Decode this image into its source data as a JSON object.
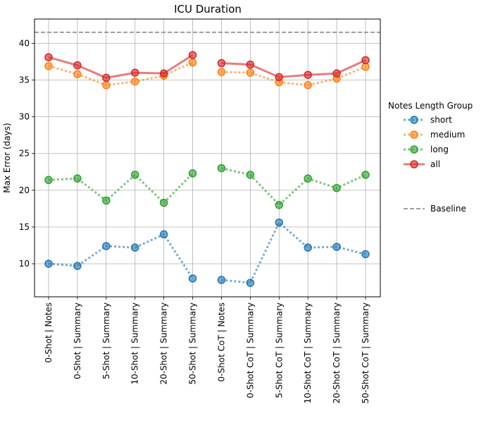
{
  "chart_data": {
    "type": "line",
    "title": "ICU Duration",
    "xlabel": "",
    "ylabel": "Max Error (days)",
    "ylim": [
      5.5,
      43.3
    ],
    "yticks": [
      10,
      15,
      20,
      25,
      30,
      35,
      40
    ],
    "grid": true,
    "categories": [
      "0-Shot | Notes",
      "0-Shot | Summary",
      "5-Shot | Summary",
      "10-Shot | Summary",
      "20-Shot | Summary",
      "50-Shot | Summary",
      "0-Shot CoT | Notes",
      "0-Shot CoT | Summary",
      "5-Shot CoT | Summary",
      "10-Shot CoT | Summary",
      "20-Shot CoT | Summary",
      "50-Shot CoT | Summary"
    ],
    "segments": [
      [
        0,
        5
      ],
      [
        6,
        11
      ]
    ],
    "series": [
      {
        "name": "short",
        "color": "#1f77b4",
        "style": "dotted",
        "values": [
          10.0,
          9.7,
          12.4,
          12.2,
          14.0,
          8.0,
          7.8,
          7.4,
          15.6,
          12.2,
          12.3,
          11.3
        ]
      },
      {
        "name": "medium",
        "color": "#ff7f0e",
        "style": "dotted",
        "values": [
          36.9,
          35.8,
          34.3,
          34.8,
          35.6,
          37.4,
          36.1,
          36.0,
          34.7,
          34.3,
          35.2,
          36.8
        ]
      },
      {
        "name": "long",
        "color": "#2ca02c",
        "style": "dotted",
        "values": [
          21.4,
          21.6,
          18.6,
          22.1,
          18.3,
          22.3,
          23.0,
          22.1,
          18.0,
          21.6,
          20.3,
          22.1
        ]
      },
      {
        "name": "all",
        "color": "#d62728",
        "style": "solid",
        "values": [
          38.1,
          37.0,
          35.3,
          36.0,
          35.9,
          38.4,
          37.3,
          37.1,
          35.4,
          35.7,
          35.9,
          37.7
        ]
      }
    ],
    "baseline": {
      "name": "Baseline",
      "value": 41.5,
      "color": "#808080"
    },
    "legend": {
      "title": "Notes Length Group",
      "placement": "right-outside"
    }
  }
}
